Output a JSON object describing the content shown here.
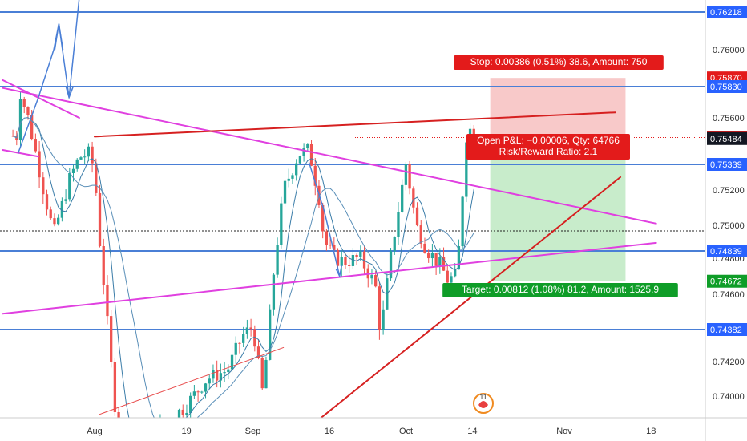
{
  "chart_data": {
    "type": "candlestick",
    "title": "",
    "xlabel": "",
    "ylabel": "",
    "ylim": [
      0.7385,
      0.7632
    ],
    "grid": false,
    "x_ticks": [
      {
        "label": "Aug",
        "day": 0
      },
      {
        "label": "19",
        "day": 18
      },
      {
        "label": "Sep",
        "day": 31
      },
      {
        "label": "16",
        "day": 46
      },
      {
        "label": "Oct",
        "day": 61
      },
      {
        "label": "14",
        "day": 74
      },
      {
        "label": "Nov",
        "day": 92
      },
      {
        "label": "18",
        "day": 109
      }
    ],
    "y_ticks": [
      "0.76000",
      "0.75600",
      "0.75200",
      "0.75000",
      "0.74800",
      "0.74600",
      "0.74200",
      "0.74000"
    ],
    "horizontal_levels": [
      0.76218,
      0.7583,
      0.75339,
      0.74839,
      0.74382
    ],
    "price_tags": [
      {
        "label": "0.76218",
        "value": 0.76218,
        "kind": "blue"
      },
      {
        "label": "0.75870",
        "value": 0.7587,
        "kind": "red"
      },
      {
        "label": "0.75830",
        "value": 0.7583,
        "kind": "blue"
      },
      {
        "label": "0.75490",
        "value": 0.7549,
        "kind": "red"
      },
      {
        "label": "0.75484",
        "value": 0.75484,
        "kind": "dark"
      },
      {
        "label": "0.75339",
        "value": 0.75339,
        "kind": "blue"
      },
      {
        "label": "0.74839",
        "value": 0.74839,
        "kind": "blue"
      },
      {
        "label": "0.74672",
        "value": 0.74672,
        "kind": "green"
      },
      {
        "label": "0.74382",
        "value": 0.74382,
        "kind": "blue"
      }
    ],
    "position": {
      "entry": 0.75484,
      "stop": 0.7587,
      "target": 0.74672,
      "stop_label": "Stop: 0.00386 (0.51%) 38.6, Amount: 750",
      "pnl_label": "Open P&L: −0.00006, Qty: 64766",
      "ratio_label": "Risk/Reward Ratio: 2.1",
      "target_label": "Target: 0.00812 (1.08%) 81.2, Amount: 1525.9"
    },
    "candle_count": 123,
    "colors": {
      "up": "#26a69a",
      "down": "#ef5350",
      "level": "#4a7fd6",
      "magenta": "#e040e0",
      "trend_red": "#d62020",
      "ma": "#3a7ca8",
      "stop_zone": "#f8c9c9",
      "target_zone": "#c8eccb",
      "price_tag_blue": "#2962ff",
      "price_tag_red": "#e31b1b",
      "price_tag_green": "#0f9d28",
      "price_tag_dark": "#131722"
    }
  },
  "watermark_badge": "11"
}
